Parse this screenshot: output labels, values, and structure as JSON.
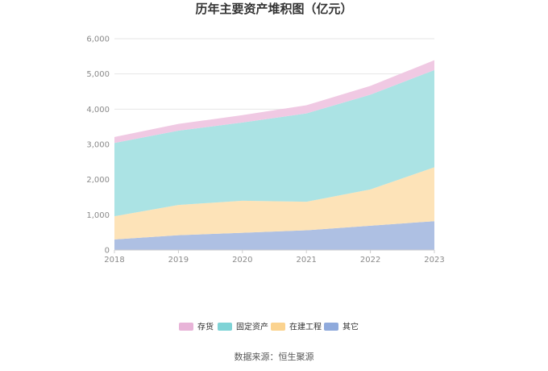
{
  "chart_data": {
    "type": "area",
    "stacked": true,
    "title": "历年主要资产堆积图（亿元）",
    "x": [
      "2018",
      "2019",
      "2020",
      "2021",
      "2022",
      "2023"
    ],
    "ylim": [
      0,
      6000
    ],
    "yticks": [
      0,
      1000,
      2000,
      3000,
      4000,
      5000,
      6000
    ],
    "ytick_labels": [
      "0",
      "1,000",
      "2,000",
      "3,000",
      "4,000",
      "5,000",
      "6,000"
    ],
    "grid": true,
    "legend_position": "bottom",
    "series": [
      {
        "name": "其它",
        "color": "#aec0e3",
        "legend_color": "#8faadc",
        "values": [
          300,
          420,
          490,
          560,
          690,
          820
        ]
      },
      {
        "name": "在建工程",
        "color": "#fde3b8",
        "legend_color": "#fbd38f",
        "values": [
          660,
          860,
          910,
          810,
          1030,
          1530
        ]
      },
      {
        "name": "固定资产",
        "color": "#abe3e4",
        "legend_color": "#7fd3d6",
        "values": [
          2080,
          2110,
          2220,
          2510,
          2690,
          2760
        ]
      },
      {
        "name": "存货",
        "color": "#f0c9e3",
        "legend_color": "#e8b4d8",
        "values": [
          170,
          190,
          210,
          230,
          250,
          280
        ]
      }
    ],
    "legend_order": [
      "存货",
      "固定资产",
      "在建工程",
      "其它"
    ]
  },
  "footer": {
    "source": "数据来源：恒生聚源"
  }
}
